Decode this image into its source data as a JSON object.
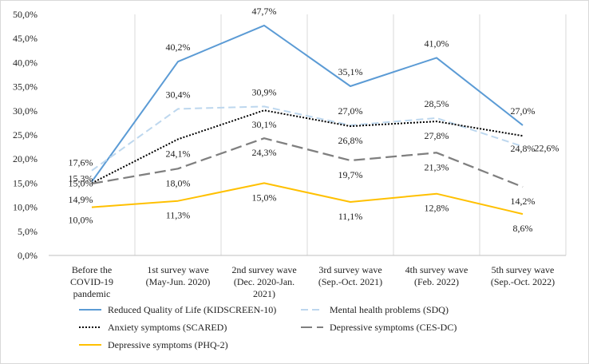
{
  "chart_data": {
    "type": "line",
    "title": "",
    "xlabel": "",
    "ylabel": "",
    "ylim": [
      0,
      50
    ],
    "y_tick_step": 5,
    "y_tick_labels": [
      "0,0%",
      "5,0%",
      "10,0%",
      "15,0%",
      "20,0%",
      "25,0%",
      "30,0%",
      "35,0%",
      "40,0%",
      "45,0%",
      "50,0%"
    ],
    "grid": "vertical",
    "legend_position": "bottom",
    "categories": [
      [
        "Before the",
        "COVID-19",
        "pandemic"
      ],
      [
        "1st survey wave",
        "(May-Jun. 2020)"
      ],
      [
        "2nd survey wave",
        "(Dec. 2020-Jan.",
        "2021)"
      ],
      [
        "3rd survey wave",
        "(Sep.-Oct. 2021)"
      ],
      [
        "4th survey wave",
        "(Feb. 2022)"
      ],
      [
        "5th survey wave",
        "(Sep.-Oct. 2022)"
      ]
    ],
    "series": [
      {
        "name": "Reduced Quality of Life (KIDSCREEN-10)",
        "values": [
          15.3,
          40.2,
          47.7,
          35.1,
          41.0,
          27.0
        ],
        "labels": [
          "15,3%",
          "40,2%",
          "47,7%",
          "35,1%",
          "41,0%",
          "27,0%"
        ],
        "color": "#5b9bd5",
        "dash": "solid"
      },
      {
        "name": "Mental health problems (SDQ)",
        "values": [
          17.6,
          30.4,
          30.9,
          27.0,
          28.5,
          22.6
        ],
        "labels": [
          "17,6%",
          "30,4%",
          "30,9%",
          "27,0%",
          "28,5%",
          "22,6%"
        ],
        "color": "#bdd7ee",
        "dash": "dashed"
      },
      {
        "name": "Anxiety symptoms (SCARED)",
        "values": [
          15.0,
          24.1,
          30.1,
          26.8,
          27.8,
          24.8
        ],
        "labels": [
          "15,0%",
          "24,1%",
          "30,1%",
          "26,8%",
          "27,8%",
          "24,8%"
        ],
        "color": "#000000",
        "dash": "dotted"
      },
      {
        "name": "Depressive symptoms (CES-DC)",
        "values": [
          14.9,
          18.0,
          24.3,
          19.7,
          21.3,
          14.2
        ],
        "labels": [
          "14,9%",
          "18,0%",
          "24,3%",
          "19,7%",
          "21,3%",
          "14,2%"
        ],
        "color": "#7f7f7f",
        "dash": "longdash"
      },
      {
        "name": "Depressive symptoms (PHQ-2)",
        "values": [
          10.0,
          11.3,
          15.0,
          11.1,
          12.8,
          8.6
        ],
        "labels": [
          "10,0%",
          "11,3%",
          "15,0%",
          "11,1%",
          "12,8%",
          "8,6%"
        ],
        "color": "#ffc000",
        "dash": "solid"
      }
    ]
  }
}
